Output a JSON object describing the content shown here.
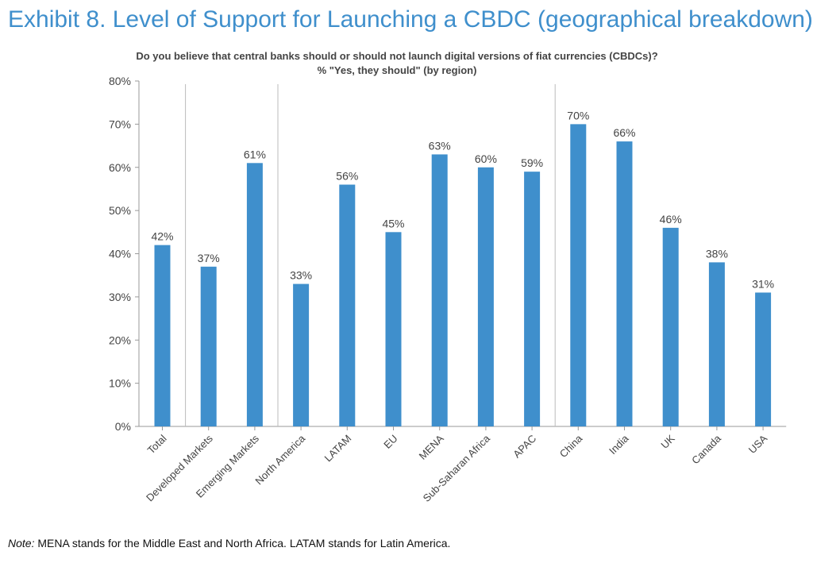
{
  "exhibit_title": "Exhibit 8. Level of Support for Launching a CBDC (geographical breakdown)",
  "note": {
    "label": "Note:",
    "text": " MENA stands for the Middle East and North Africa. LATAM stands for Latin America."
  },
  "colors": {
    "bar": "#3f8fcc",
    "title": "#3f8fcc"
  },
  "chart_data": {
    "type": "bar",
    "title": "Do you believe that central banks should or should not launch digital versions of fiat currencies (CBDCs)?",
    "subtitle": "% \"Yes, they should\" (by region)",
    "categories": [
      "Total",
      "Developed Markets",
      "Emerging Markets",
      "North America",
      "LATAM",
      "EU",
      "MENA",
      "Sub-Saharan Africa",
      "APAC",
      "China",
      "India",
      "UK",
      "Canada",
      "USA"
    ],
    "values": [
      42,
      37,
      61,
      33,
      56,
      45,
      63,
      60,
      59,
      70,
      66,
      46,
      38,
      31
    ],
    "data_labels": [
      "42%",
      "37%",
      "61%",
      "33%",
      "56%",
      "45%",
      "63%",
      "60%",
      "59%",
      "70%",
      "66%",
      "46%",
      "38%",
      "31%"
    ],
    "y_ticks": [
      "0%",
      "10%",
      "20%",
      "30%",
      "40%",
      "50%",
      "60%",
      "70%",
      "80%"
    ],
    "ylim": [
      0,
      80
    ],
    "group_separators_after": [
      "Total",
      "Emerging Markets",
      "APAC"
    ],
    "grid": false
  }
}
